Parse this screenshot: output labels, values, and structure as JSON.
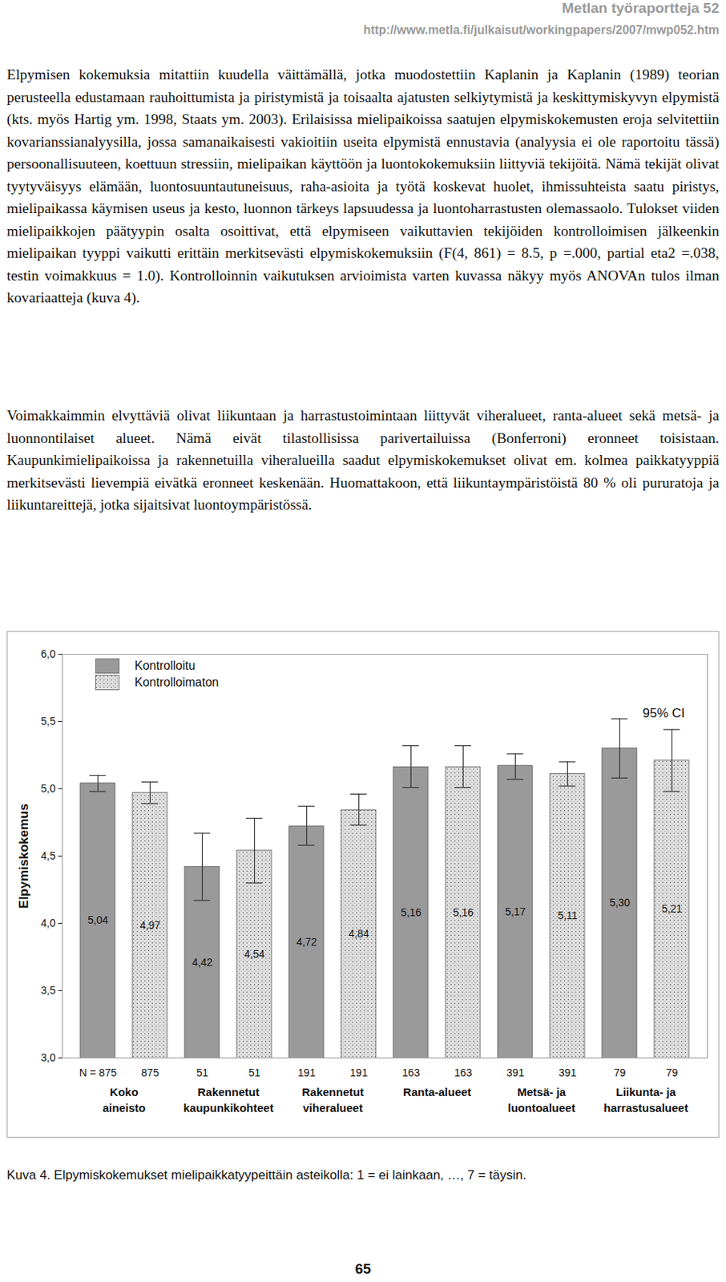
{
  "header": {
    "series": "Metlan työraportteja 52",
    "url": "http://www.metla.fi/julkaisut/workingpapers/2007/mwp052.htm"
  },
  "paragraphs": [
    "Elpymisen kokemuksia mitattiin kuudella väittämällä, jotka muodostettiin Kaplanin ja Kaplanin (1989) teorian perusteella edustamaan rauhoittumista ja piristymistä ja toisaalta ajatusten selkiytymistä ja keskittymiskyvyn elpymistä (kts. myös Hartig ym. 1998, Staats ym. 2003). Erilaisissa mielipaikoissa saatujen elpymiskokemusten eroja selvitettiin kovarianssianalyysilla, jossa samanaikaisesti vakioitiin useita elpymistä ennustavia (analyysia ei ole raportoitu tässä) persoonallisuuteen, koettuun stressiin, mielipaikan käyttöön ja luontokokemuksiin liittyviä tekijöitä. Nämä tekijät olivat tyytyväisyys elämään, luontosuuntautuneisuus, raha-asioita ja työtä koskevat huolet, ihmissuhteista saatu piristys, mielipaikassa käymisen useus ja kesto, luonnon tärkeys lapsuudessa ja luontoharrastusten olemassaolo. Tulokset viiden mielipaikkojen päätyypin osalta osoittivat, että elpymiseen vaikuttavien tekijöiden kontrolloimisen jälkeenkin mielipaikan tyyppi vaikutti erittäin merkitsevästi elpymiskokemuksiin (F(4, 861) = 8.5, p =.000, partial eta2 =.038, testin voimakkuus = 1.0). Kontrolloinnin vaikutuksen arvioimista varten kuvassa näkyy myös ANOVAn tulos ilman kovariaatteja (kuva 4).",
    "Voimakkaimmin elvyttäviä olivat liikuntaan ja harrastustoimintaan liittyvät viheralueet, ranta-alueet sekä metsä- ja luonnontilaiset alueet. Nämä eivät tilastollisissa parivertailuissa (Bonferroni) eronneet toisistaan. Kaupunkimielipaikoissa ja rakennetuilla viheralueilla saadut elpymiskokemukset olivat em. kolmea paikkatyyppiä merkitsevästi lievempiä eivätkä eronneet keskenään. Huomattakoon, että liikuntaympäristöistä 80 % oli pururatoja ja liikuntareittejä, jotka sijaitsivat luontoympäristössä."
  ],
  "chart_data": {
    "type": "bar",
    "ylabel": "Elpymiskokemus",
    "categories": [
      "Koko\naineisto",
      "Rakennetut\nkaupunkikohteet",
      "Rakennetut\nviheralueet",
      "Ranta-alueet",
      "Metsä- ja\nluontoalueet",
      "Liikunta- ja\nharrastusalueet"
    ],
    "n_prefix": "N =",
    "n": [
      875,
      51,
      191,
      163,
      391,
      79
    ],
    "ci_label": "95% CI",
    "ylim": [
      3,
      6
    ],
    "yticks": [
      {
        "value": 3,
        "label": "3,0"
      },
      {
        "value": 3.5,
        "label": "3,5"
      },
      {
        "value": 4,
        "label": "4,0"
      },
      {
        "value": 4.5,
        "label": "4,5"
      },
      {
        "value": 5,
        "label": "5,0"
      },
      {
        "value": 5.5,
        "label": "5,5"
      },
      {
        "value": 6,
        "label": "6,0"
      }
    ],
    "grid": false,
    "legend": "top-left",
    "data_labels": true,
    "series": [
      {
        "name": "Kontrolloitu",
        "color": "#9a9a9a",
        "values": [
          5.04,
          4.42,
          4.72,
          5.16,
          5.17,
          5.3
        ],
        "value_labels": [
          "5,04",
          "4,42",
          "4,72",
          "5,16",
          "5,17",
          "5,30"
        ],
        "ci_low": [
          4.98,
          4.17,
          4.58,
          5.01,
          5.07,
          5.08
        ],
        "ci_high": [
          5.1,
          4.67,
          4.87,
          5.32,
          5.26,
          5.52
        ]
      },
      {
        "name": "Kontrolloimaton",
        "color": "#e0e0e0",
        "values": [
          4.97,
          4.54,
          4.84,
          5.16,
          5.11,
          5.21
        ],
        "value_labels": [
          "4,97",
          "4,54",
          "4,84",
          "5,16",
          "5,11",
          "5,21"
        ],
        "ci_low": [
          4.89,
          4.3,
          4.73,
          5.01,
          5.02,
          4.98
        ],
        "ci_high": [
          5.05,
          4.78,
          4.96,
          5.32,
          5.2,
          5.44
        ]
      }
    ]
  },
  "caption": "Kuva 4. Elpymiskokemukset mielipaikkatyypeittäin asteikolla: 1 = ei lainkaan, …, 7 = täysin.",
  "page_number": "65"
}
